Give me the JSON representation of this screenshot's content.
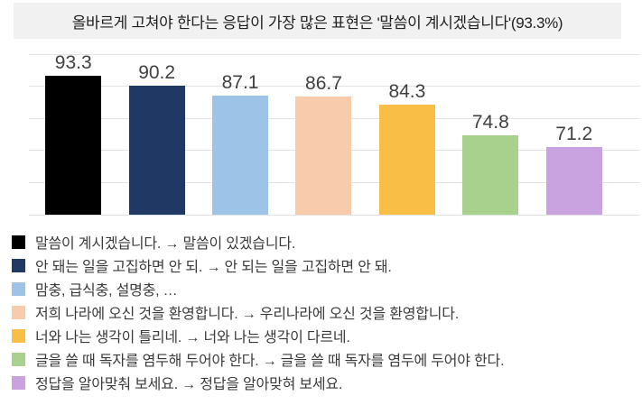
{
  "header": {
    "title": "올바르게 고쳐야 한다는 응답이 가장 많은 표현은 '말씀이 계시겠습니다'(93.3%)"
  },
  "chart_data": {
    "type": "bar",
    "title": "올바르게 고쳐야 한다는 응답이 가장 많은 표현은 '말씀이 계시겠습니다'(93.3%)",
    "categories": [
      "말씀이 계시겠습니다. → 말씀이 있겠습니다.",
      "안 돼는 일을 고집하면 안 되. → 안 되는 일을 고집하면 안 돼.",
      "맘충, 급식충, 설명충, …",
      "저희 나라에 오신 것을 환영합니다. → 우리나라에 오신 것을 환영합니다.",
      "너와 나는 생각이 틀리네. → 너와 나는 생각이 다르네.",
      "글을 쓸 때 독자를 염두해 두어야 한다. → 글을 쓸 때 독자를 염두에 두어야 한다.",
      "정답을 알아맞춰 보세요. → 정답을 알아맞혀 보세요."
    ],
    "values": [
      93.3,
      90.2,
      87.1,
      86.7,
      84.3,
      74.8,
      71.2
    ],
    "value_labels": [
      "93.3",
      "90.2",
      "87.1",
      "86.7",
      "84.3",
      "74.8",
      "71.2"
    ],
    "colors": [
      "#000000",
      "#1f3864",
      "#9dc3e6",
      "#f8cbad",
      "#f9be45",
      "#a9d18e",
      "#c8a3e0"
    ],
    "unit": "%",
    "xlabel": "",
    "ylabel": "",
    "ylim": [
      50,
      100
    ],
    "gridline_step": 10,
    "grid": true,
    "legend_position": "bottom"
  }
}
